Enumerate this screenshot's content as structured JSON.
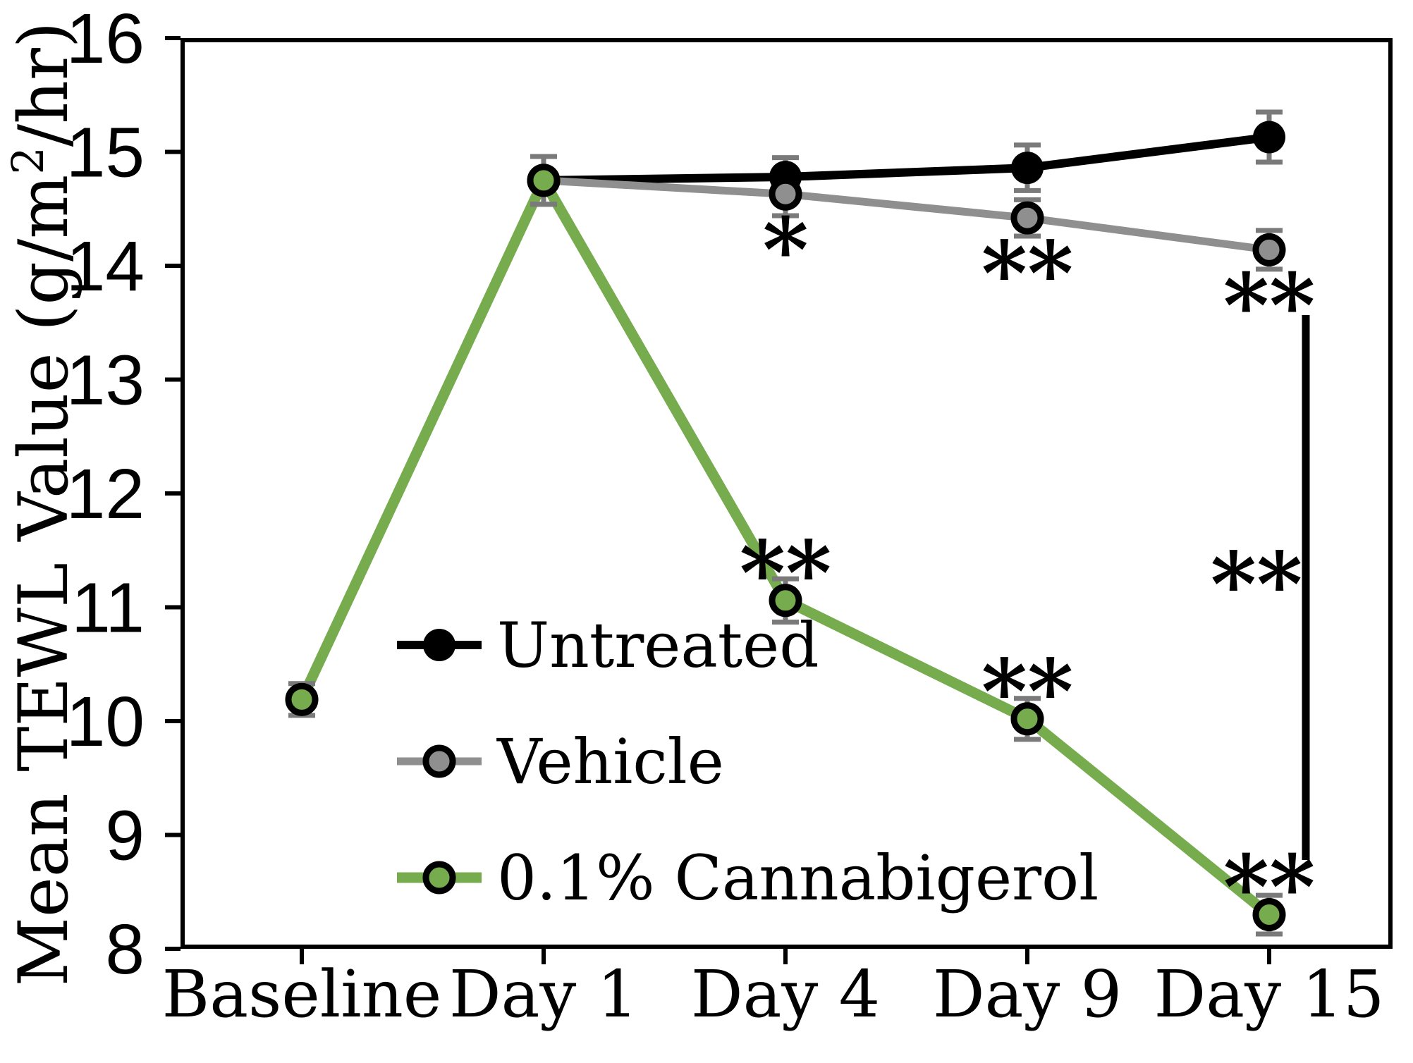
{
  "figure": {
    "background": "#ffffff",
    "axis_color": "#000000"
  },
  "chart_data": {
    "type": "line",
    "title": "",
    "xlabel": "",
    "ylabel": "Mean TEWL Value (g/m²/hr)",
    "ylabel_parts": {
      "prefix": "Mean TEWL Value (g/m",
      "superscript": "2",
      "suffix": "/hr)"
    },
    "categories": [
      "Baseline",
      "Day 1",
      "Day 4",
      "Day 9",
      "Day 15"
    ],
    "ylim": [
      8,
      16
    ],
    "yticks": [
      "8",
      "9",
      "10",
      "11",
      "12",
      "13",
      "14",
      "15",
      "16"
    ],
    "grid": false,
    "error_bar_color": "#7a7a7a",
    "series": [
      {
        "name": "Untreated",
        "color": "#000000",
        "marker": "filled-black-circle",
        "values": [
          null,
          14.75,
          14.78,
          14.86,
          15.13
        ],
        "errors": [
          null,
          0.21,
          0.17,
          0.2,
          0.22
        ]
      },
      {
        "name": "Vehicle",
        "color": "#8f8f8f",
        "marker": "gray-circle-black-ring",
        "values": [
          null,
          14.75,
          14.63,
          14.42,
          14.14
        ],
        "errors": [
          null,
          0.21,
          0.19,
          0.16,
          0.17
        ]
      },
      {
        "name": "0.1% Cannabigerol",
        "color": "#76ab4e",
        "marker": "green-circle-black-ring",
        "values": [
          10.19,
          14.75,
          11.06,
          10.02,
          8.3
        ],
        "errors": [
          0.14,
          0.21,
          0.19,
          0.18,
          0.17
        ]
      }
    ],
    "annotations": [
      {
        "text": "*",
        "series": "Vehicle",
        "category": "Day 4",
        "placement": "below"
      },
      {
        "text": "**",
        "series": "Vehicle",
        "category": "Day 9",
        "placement": "below"
      },
      {
        "text": "**",
        "series": "Vehicle",
        "category": "Day 15",
        "placement": "below"
      },
      {
        "text": "**",
        "series": "0.1% Cannabigerol",
        "category": "Day 4",
        "placement": "above"
      },
      {
        "text": "**",
        "series": "0.1% Cannabigerol",
        "category": "Day 9",
        "placement": "above"
      },
      {
        "text": "**",
        "series": "0.1% Cannabigerol",
        "category": "Day 15",
        "placement": "above"
      }
    ],
    "significance_bracket": {
      "label": "**"
    },
    "legend": {
      "position": "inside-lower-left",
      "items": [
        "Untreated",
        "Vehicle",
        "0.1% Cannabigerol"
      ]
    }
  }
}
